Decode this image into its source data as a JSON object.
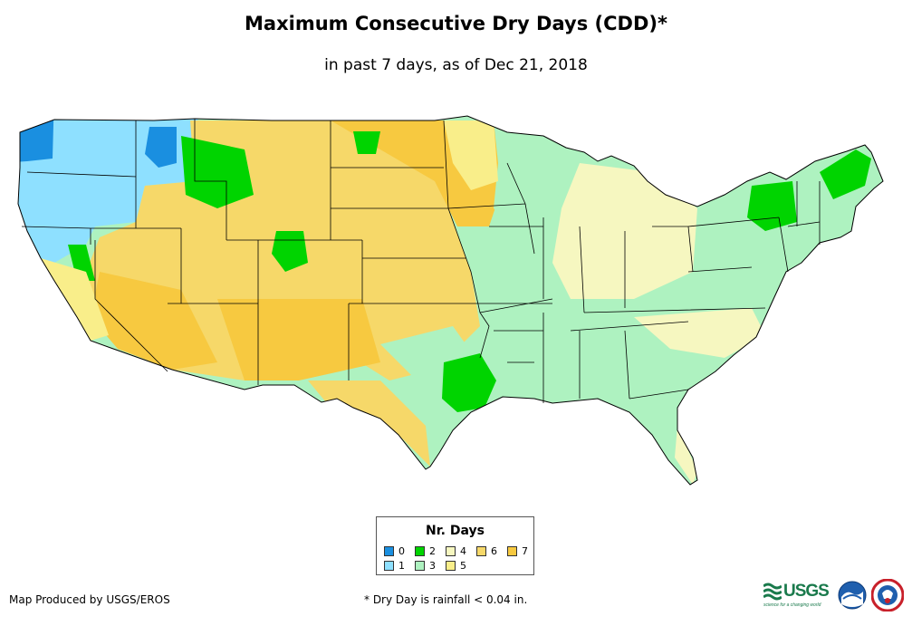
{
  "title": "Maximum Consecutive Dry Days (CDD)*",
  "subtitle": "in past 7 days, as of Dec 21, 2018",
  "legend": {
    "title": "Nr. Days",
    "items": [
      {
        "label": "0",
        "color": "#1a8fe0"
      },
      {
        "label": "1",
        "color": "#8ee0ff"
      },
      {
        "label": "2",
        "color": "#00d400"
      },
      {
        "label": "3",
        "color": "#aef2c0"
      },
      {
        "label": "4",
        "color": "#f6f7c0"
      },
      {
        "label": "5",
        "color": "#f9ee8a"
      },
      {
        "label": "6",
        "color": "#f6d869"
      },
      {
        "label": "7",
        "color": "#f7c940"
      }
    ]
  },
  "credit": "Map Produced by USGS/EROS",
  "footnote": "* Dry Day is rainfall < 0.04 in.",
  "logos": {
    "usgs": "USGS",
    "usgs_tagline": "science for a changing world",
    "noaa": "noaa-emblem",
    "nws": "nws-emblem"
  }
}
